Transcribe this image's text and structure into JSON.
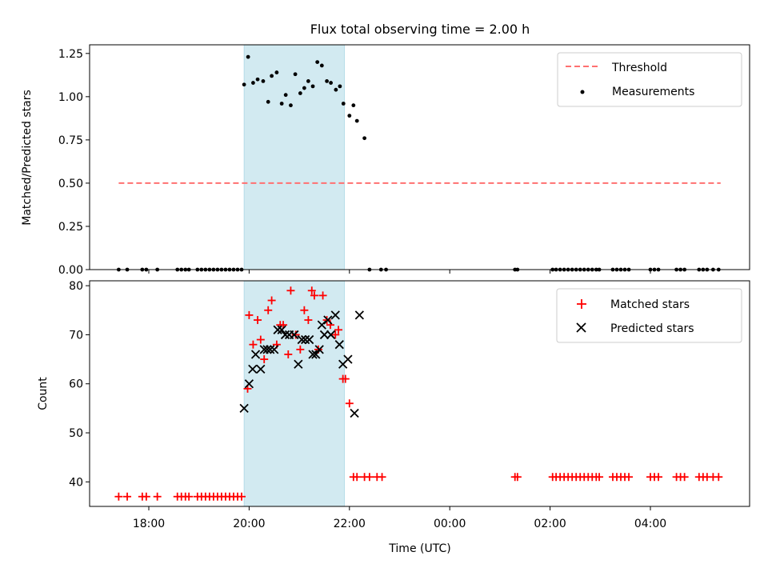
{
  "chart_data": [
    {
      "type": "scatter",
      "title": "Flux total observing time = 2.00 h",
      "ylabel": "Matched/Predicted stars",
      "xlabel": "",
      "ylim": [
        0,
        1.3
      ],
      "yticks": [
        "0.00",
        "0.25",
        "0.50",
        "0.75",
        "1.00",
        "1.25"
      ],
      "legend": {
        "position": "top-right",
        "entries": [
          "Threshold",
          "Measurements"
        ]
      },
      "shaded_interval_hours": [
        19.9,
        21.9
      ],
      "threshold": {
        "name": "Threshold",
        "value": 0.5,
        "x_range_hours": [
          17.4,
          29.4
        ],
        "color": "#ff7070"
      },
      "series": [
        {
          "name": "Measurements",
          "color": "#000000",
          "x_hours": [
            17.4,
            17.57,
            17.87,
            17.95,
            18.17,
            18.57,
            18.65,
            18.73,
            18.8,
            18.97,
            19.05,
            19.13,
            19.21,
            19.29,
            19.37,
            19.45,
            19.53,
            19.61,
            19.69,
            19.77,
            19.85,
            19.9,
            19.98,
            20.08,
            20.17,
            20.28,
            20.38,
            20.45,
            20.55,
            20.65,
            20.73,
            20.83,
            20.92,
            21.02,
            21.1,
            21.18,
            21.27,
            21.36,
            21.45,
            21.55,
            21.63,
            21.73,
            21.81,
            21.88,
            22.0,
            22.08,
            22.15,
            22.3,
            22.4,
            22.63,
            22.73,
            25.3,
            25.35,
            26.05,
            26.12,
            26.2,
            26.28,
            26.36,
            26.44,
            26.52,
            26.6,
            26.68,
            26.76,
            26.84,
            26.92,
            26.98,
            27.25,
            27.33,
            27.41,
            27.49,
            27.57,
            28.0,
            28.08,
            28.16,
            28.52,
            28.6,
            28.68,
            28.97,
            29.05,
            29.13,
            29.25,
            29.36
          ],
          "y": [
            0,
            0,
            0,
            0,
            0,
            0,
            0,
            0,
            0,
            0,
            0,
            0,
            0,
            0,
            0,
            0,
            0,
            0,
            0,
            0,
            0,
            1.07,
            1.23,
            1.08,
            1.1,
            1.09,
            0.97,
            1.12,
            1.14,
            0.96,
            1.01,
            0.95,
            1.13,
            1.02,
            1.05,
            1.09,
            1.06,
            1.2,
            1.18,
            1.09,
            1.08,
            1.04,
            1.06,
            0.96,
            0.89,
            0.95,
            0.86,
            0.76,
            0,
            0,
            0,
            0,
            0,
            0,
            0,
            0,
            0,
            0,
            0,
            0,
            0,
            0,
            0,
            0,
            0,
            0,
            0,
            0,
            0,
            0,
            0,
            0,
            0,
            0,
            0,
            0,
            0,
            0,
            0,
            0,
            0,
            0
          ]
        }
      ]
    },
    {
      "type": "scatter",
      "title": "",
      "ylabel": "Count",
      "xlabel": "Time (UTC)",
      "ylim": [
        35,
        81
      ],
      "yticks": [
        "40",
        "50",
        "60",
        "70",
        "80"
      ],
      "xticks": [
        "18:00",
        "20:00",
        "22:00",
        "00:00",
        "02:00",
        "04:00"
      ],
      "legend": {
        "position": "top-right",
        "entries": [
          "Matched stars",
          "Predicted stars"
        ]
      },
      "shaded_interval_hours": [
        19.9,
        21.9
      ],
      "series": [
        {
          "name": "Matched stars",
          "marker": "+",
          "color": "#ff0000",
          "x_hours": [
            17.4,
            17.57,
            17.87,
            17.95,
            18.17,
            18.57,
            18.65,
            18.73,
            18.8,
            18.97,
            19.05,
            19.13,
            19.21,
            19.29,
            19.37,
            19.45,
            19.53,
            19.61,
            19.69,
            19.77,
            19.85,
            19.97,
            20.0,
            20.08,
            20.17,
            20.23,
            20.3,
            20.38,
            20.45,
            20.55,
            20.62,
            20.68,
            20.78,
            20.83,
            20.93,
            21.02,
            21.1,
            21.18,
            21.25,
            21.3,
            21.38,
            21.47,
            21.55,
            21.62,
            21.72,
            21.78,
            21.87,
            21.92,
            22.0,
            22.08,
            22.15,
            22.3,
            22.4,
            22.55,
            22.65,
            25.3,
            25.35,
            26.05,
            26.12,
            26.2,
            26.28,
            26.36,
            26.44,
            26.52,
            26.6,
            26.68,
            26.76,
            26.84,
            26.92,
            26.98,
            27.25,
            27.33,
            27.41,
            27.49,
            27.57,
            28.0,
            28.08,
            28.16,
            28.52,
            28.6,
            28.68,
            28.97,
            29.05,
            29.13,
            29.25,
            29.36
          ],
          "y": [
            37,
            37,
            37,
            37,
            37,
            37,
            37,
            37,
            37,
            37,
            37,
            37,
            37,
            37,
            37,
            37,
            37,
            37,
            37,
            37,
            37,
            59,
            74,
            68,
            73,
            69,
            65,
            75,
            77,
            68,
            72,
            72,
            66,
            79,
            70,
            67,
            75,
            73,
            79,
            78,
            67,
            78,
            73,
            72,
            70,
            71,
            61,
            61,
            56,
            41,
            41,
            41,
            41,
            41,
            41,
            41,
            41,
            41,
            41,
            41,
            41,
            41,
            41,
            41,
            41,
            41,
            41,
            41,
            41,
            41,
            41,
            41,
            41,
            41,
            41,
            41,
            41,
            41,
            41,
            41,
            41,
            41,
            41,
            41,
            41,
            41
          ]
        },
        {
          "name": "Predicted stars",
          "marker": "x",
          "color": "#000000",
          "x_hours": [
            19.9,
            20.0,
            20.07,
            20.13,
            20.23,
            20.3,
            20.36,
            20.42,
            20.5,
            20.57,
            20.65,
            20.72,
            20.8,
            20.9,
            20.98,
            21.05,
            21.12,
            21.2,
            21.27,
            21.33,
            21.4,
            21.45,
            21.5,
            21.57,
            21.63,
            21.72,
            21.8,
            21.87,
            21.97,
            22.1,
            22.2
          ],
          "y": [
            55,
            60,
            63,
            66,
            63,
            67,
            67,
            67,
            67,
            71,
            71,
            70,
            70,
            70,
            64,
            69,
            69,
            69,
            66,
            66,
            67,
            72,
            70,
            73,
            70,
            74,
            68,
            64,
            65,
            54,
            74
          ]
        }
      ]
    }
  ]
}
